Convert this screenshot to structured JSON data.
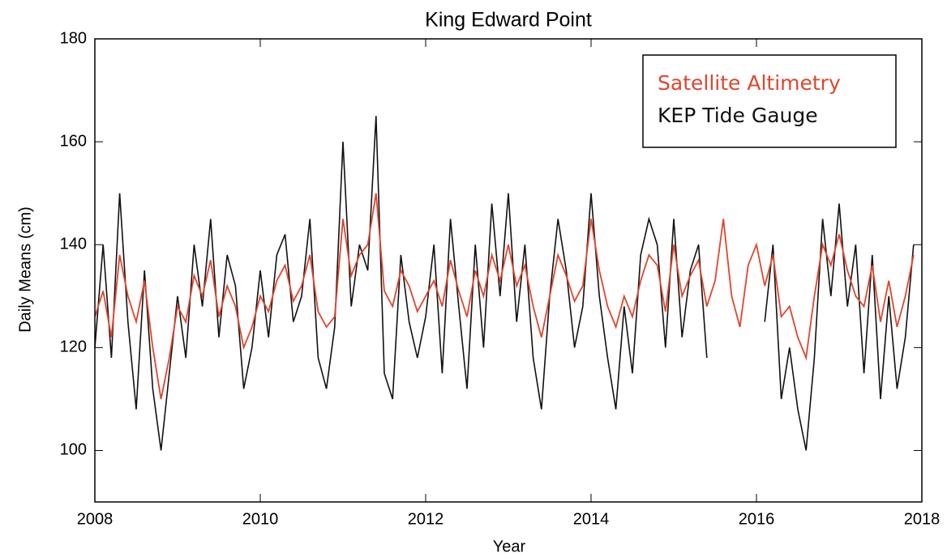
{
  "chart_data": {
    "type": "line",
    "title": "King Edward Point",
    "xlabel": "Year",
    "ylabel": "Daily Means (cm)",
    "x": [
      2008.0,
      2008.1,
      2008.2,
      2008.3,
      2008.4,
      2008.5,
      2008.6,
      2008.7,
      2008.8,
      2008.9,
      2009.0,
      2009.1,
      2009.2,
      2009.3,
      2009.4,
      2009.5,
      2009.6,
      2009.7,
      2009.8,
      2009.9,
      2010.0,
      2010.1,
      2010.2,
      2010.3,
      2010.4,
      2010.5,
      2010.6,
      2010.7,
      2010.8,
      2010.9,
      2011.0,
      2011.1,
      2011.2,
      2011.3,
      2011.4,
      2011.5,
      2011.6,
      2011.7,
      2011.8,
      2011.9,
      2012.0,
      2012.1,
      2012.2,
      2012.3,
      2012.4,
      2012.5,
      2012.6,
      2012.7,
      2012.8,
      2012.9,
      2013.0,
      2013.1,
      2013.2,
      2013.3,
      2013.4,
      2013.5,
      2013.6,
      2013.7,
      2013.8,
      2013.9,
      2014.0,
      2014.1,
      2014.2,
      2014.3,
      2014.4,
      2014.5,
      2014.6,
      2014.7,
      2014.8,
      2014.9,
      2015.0,
      2015.1,
      2015.2,
      2015.3,
      2015.4,
      2015.5,
      2015.6,
      2015.7,
      2015.8,
      2015.9,
      2016.0,
      2016.1,
      2016.2,
      2016.3,
      2016.4,
      2016.5,
      2016.6,
      2016.7,
      2016.8,
      2016.9,
      2017.0,
      2017.1,
      2017.2,
      2017.3,
      2017.4,
      2017.5,
      2017.6,
      2017.7,
      2017.8,
      2017.9
    ],
    "series": [
      {
        "name": "KEP Tide Gauge",
        "color": "#111111",
        "values": [
          120,
          140,
          118,
          150,
          125,
          108,
          135,
          112,
          100,
          115,
          130,
          118,
          140,
          128,
          145,
          122,
          138,
          132,
          112,
          120,
          135,
          122,
          138,
          142,
          125,
          130,
          145,
          118,
          112,
          124,
          160,
          128,
          140,
          135,
          165,
          115,
          110,
          138,
          125,
          118,
          126,
          140,
          115,
          145,
          128,
          112,
          140,
          120,
          148,
          130,
          150,
          125,
          140,
          118,
          108,
          130,
          145,
          135,
          120,
          128,
          150,
          130,
          118,
          108,
          128,
          115,
          138,
          145,
          140,
          120,
          145,
          122,
          135,
          140,
          118,
          null,
          null,
          null,
          null,
          null,
          null,
          125,
          140,
          110,
          120,
          108,
          100,
          118,
          145,
          130,
          148,
          128,
          140,
          115,
          138,
          110,
          130,
          112,
          122,
          140
        ]
      },
      {
        "name": "Satellite Altimetry",
        "color": "#e0452c",
        "values": [
          126,
          131,
          122,
          138,
          130,
          125,
          133,
          120,
          110,
          118,
          128,
          125,
          134,
          130,
          137,
          126,
          132,
          128,
          120,
          124,
          130,
          127,
          133,
          136,
          129,
          132,
          138,
          127,
          124,
          126,
          145,
          134,
          138,
          140,
          150,
          131,
          128,
          135,
          132,
          127,
          130,
          133,
          128,
          137,
          131,
          126,
          135,
          130,
          138,
          133,
          140,
          132,
          136,
          128,
          122,
          130,
          138,
          134,
          129,
          132,
          145,
          135,
          128,
          124,
          130,
          126,
          133,
          138,
          136,
          127,
          140,
          130,
          134,
          137,
          128,
          133,
          145,
          130,
          124,
          136,
          140,
          132,
          138,
          126,
          128,
          122,
          118,
          130,
          140,
          136,
          142,
          135,
          130,
          128,
          136,
          125,
          133,
          124,
          130,
          138
        ]
      }
    ],
    "xlim": [
      2008,
      2018
    ],
    "xticks": [
      2008,
      2010,
      2012,
      2014,
      2016,
      2018
    ],
    "ylim": [
      90,
      180
    ],
    "yticks": [
      100,
      120,
      140,
      160,
      180
    ],
    "legend": "upper right"
  }
}
